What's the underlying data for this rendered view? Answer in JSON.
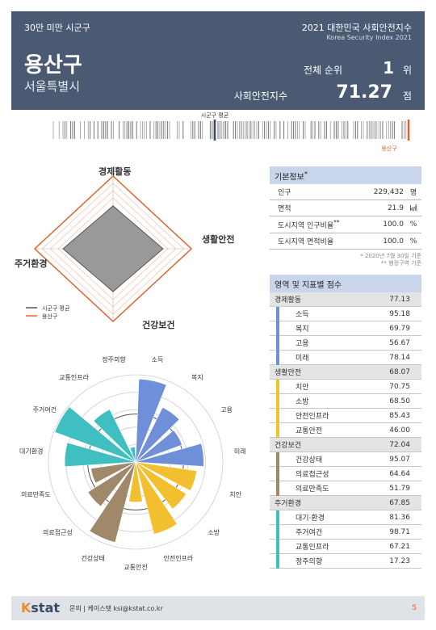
{
  "header": {
    "category": "30만 미만 시군구",
    "title": "2021 대한민국 사회안전지수",
    "subtitle": "Korea Security Index 2021",
    "district": "용산구",
    "city": "서울특별시",
    "rank_label": "전체 순위",
    "rank_value": "1",
    "rank_unit": "위",
    "index_label": "사회안전지수",
    "index_value": "71.27",
    "index_unit": "점"
  },
  "barcode": {
    "avg_label": "시군구 평균",
    "self_label": "용산구"
  },
  "radar": {
    "labels": [
      "경제활동",
      "생활안전",
      "건강보건",
      "주거환경"
    ],
    "legend_avg": "시군구 평균",
    "legend_self": "용산구",
    "colors": {
      "avg": "#555555",
      "self": "#e8602c"
    }
  },
  "basic_info": {
    "title": "기본정보",
    "rows": [
      {
        "label": "인구",
        "value": "229,432",
        "unit": "명"
      },
      {
        "label": "면적",
        "value": "21.9",
        "unit": "㎢"
      },
      {
        "label": "도시지역 인구비율",
        "value": "100.0",
        "unit": "%"
      },
      {
        "label": "도시지역 면적비율",
        "value": "100.0",
        "unit": "%"
      }
    ],
    "note1": "2020년 7월 30일 기준",
    "note2": "행정구역 기준"
  },
  "scores": {
    "title": "영역 및 지표별 점수",
    "domains": [
      {
        "name": "경제활동",
        "value": "77.13",
        "color": "#6f8fd8",
        "items": [
          {
            "name": "소득",
            "value": "95.18"
          },
          {
            "name": "복지",
            "value": "69.79"
          },
          {
            "name": "고용",
            "value": "56.67"
          },
          {
            "name": "미래",
            "value": "78.14"
          }
        ]
      },
      {
        "name": "생활안전",
        "value": "68.07",
        "color": "#f2c02f",
        "items": [
          {
            "name": "치안",
            "value": "70.75"
          },
          {
            "name": "소방",
            "value": "68.50"
          },
          {
            "name": "안전인프라",
            "value": "85.43"
          },
          {
            "name": "교통안전",
            "value": "46.00"
          }
        ]
      },
      {
        "name": "건강보건",
        "value": "72.04",
        "color": "#a0896a",
        "items": [
          {
            "name": "건강상태",
            "value": "95.07"
          },
          {
            "name": "의료접근성",
            "value": "64.64"
          },
          {
            "name": "의료만족도",
            "value": "51.79"
          }
        ]
      },
      {
        "name": "주거환경",
        "value": "67.85",
        "color": "#3fbfbf",
        "items": [
          {
            "name": "대기·환경",
            "value": "81.36"
          },
          {
            "name": "주거여건",
            "value": "98.71"
          },
          {
            "name": "교통인프라",
            "value": "67.21"
          },
          {
            "name": "정주의향",
            "value": "17.23"
          }
        ]
      }
    ]
  },
  "rose": {
    "labels": [
      "소득",
      "복지",
      "고용",
      "미래",
      "치안",
      "소방",
      "안전인프라",
      "교통안전",
      "건강상태",
      "의료접근성",
      "의료만족도",
      "대기환경",
      "주거여건",
      "교통인프라",
      "정주의향"
    ],
    "values": [
      95.18,
      69.79,
      56.67,
      78.14,
      70.75,
      68.5,
      85.43,
      46.0,
      95.07,
      64.64,
      51.79,
      81.36,
      98.71,
      67.21,
      17.23
    ],
    "colors": [
      "#6f8fd8",
      "#6f8fd8",
      "#6f8fd8",
      "#6f8fd8",
      "#f2c02f",
      "#f2c02f",
      "#f2c02f",
      "#f2c02f",
      "#a0896a",
      "#a0896a",
      "#a0896a",
      "#3fbfbf",
      "#3fbfbf",
      "#3fbfbf",
      "#3fbfbf"
    ]
  },
  "footer": {
    "logo_main": "stat",
    "contact": "문의 | 케이스탯 ksi@kstat.co.kr",
    "page": "5"
  }
}
